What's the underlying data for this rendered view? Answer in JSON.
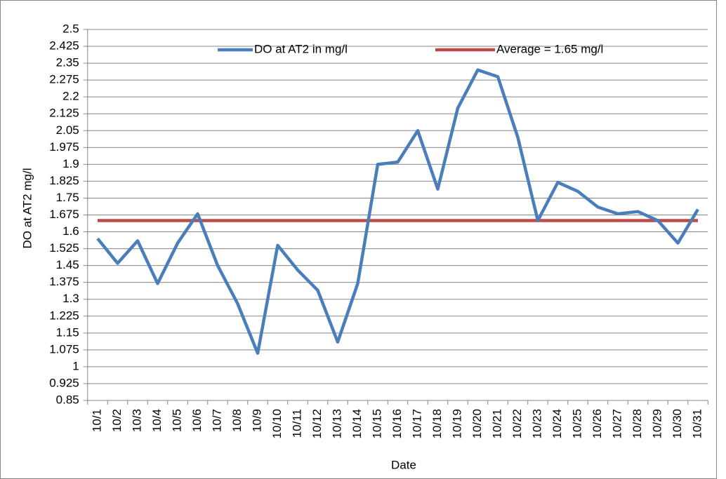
{
  "chart_data": {
    "type": "line",
    "x_label": "Date",
    "y_label": "DO at AT2 mg/l",
    "categories": [
      "10/1",
      "10/2",
      "10/3",
      "10/4",
      "10/5",
      "10/6",
      "10/7",
      "10/8",
      "10/9",
      "10/10",
      "10/11",
      "10/12",
      "10/13",
      "10/14",
      "10/15",
      "10/16",
      "10/17",
      "10/18",
      "10/19",
      "10/20",
      "10/21",
      "10/22",
      "10/23",
      "10/24",
      "10/25",
      "10/26",
      "10/27",
      "10/28",
      "10/29",
      "10/30",
      "10/31"
    ],
    "series": [
      {
        "name": "DO at AT2 in mg/l",
        "color": "#4a7ebb",
        "values": [
          1.57,
          1.46,
          1.56,
          1.37,
          1.55,
          1.68,
          1.45,
          1.28,
          1.06,
          1.54,
          1.43,
          1.34,
          1.11,
          1.37,
          1.9,
          1.91,
          2.05,
          1.79,
          2.15,
          2.32,
          2.29,
          2.02,
          1.65,
          1.82,
          1.78,
          1.71,
          1.68,
          1.69,
          1.65,
          1.55,
          1.7
        ]
      },
      {
        "name": "Average = 1.65 mg/l",
        "color": "#be4b48",
        "values": [
          1.65,
          1.65,
          1.65,
          1.65,
          1.65,
          1.65,
          1.65,
          1.65,
          1.65,
          1.65,
          1.65,
          1.65,
          1.65,
          1.65,
          1.65,
          1.65,
          1.65,
          1.65,
          1.65,
          1.65,
          1.65,
          1.65,
          1.65,
          1.65,
          1.65,
          1.65,
          1.65,
          1.65,
          1.65,
          1.65,
          1.65
        ]
      }
    ],
    "ylim": [
      0.85,
      2.5
    ],
    "yticks": [
      0.85,
      0.925,
      1,
      1.075,
      1.15,
      1.225,
      1.3,
      1.375,
      1.45,
      1.525,
      1.6,
      1.675,
      1.75,
      1.825,
      1.9,
      1.975,
      2.05,
      2.125,
      2.2,
      2.275,
      2.35,
      2.425,
      2.5
    ],
    "grid": true,
    "legend": "top"
  }
}
